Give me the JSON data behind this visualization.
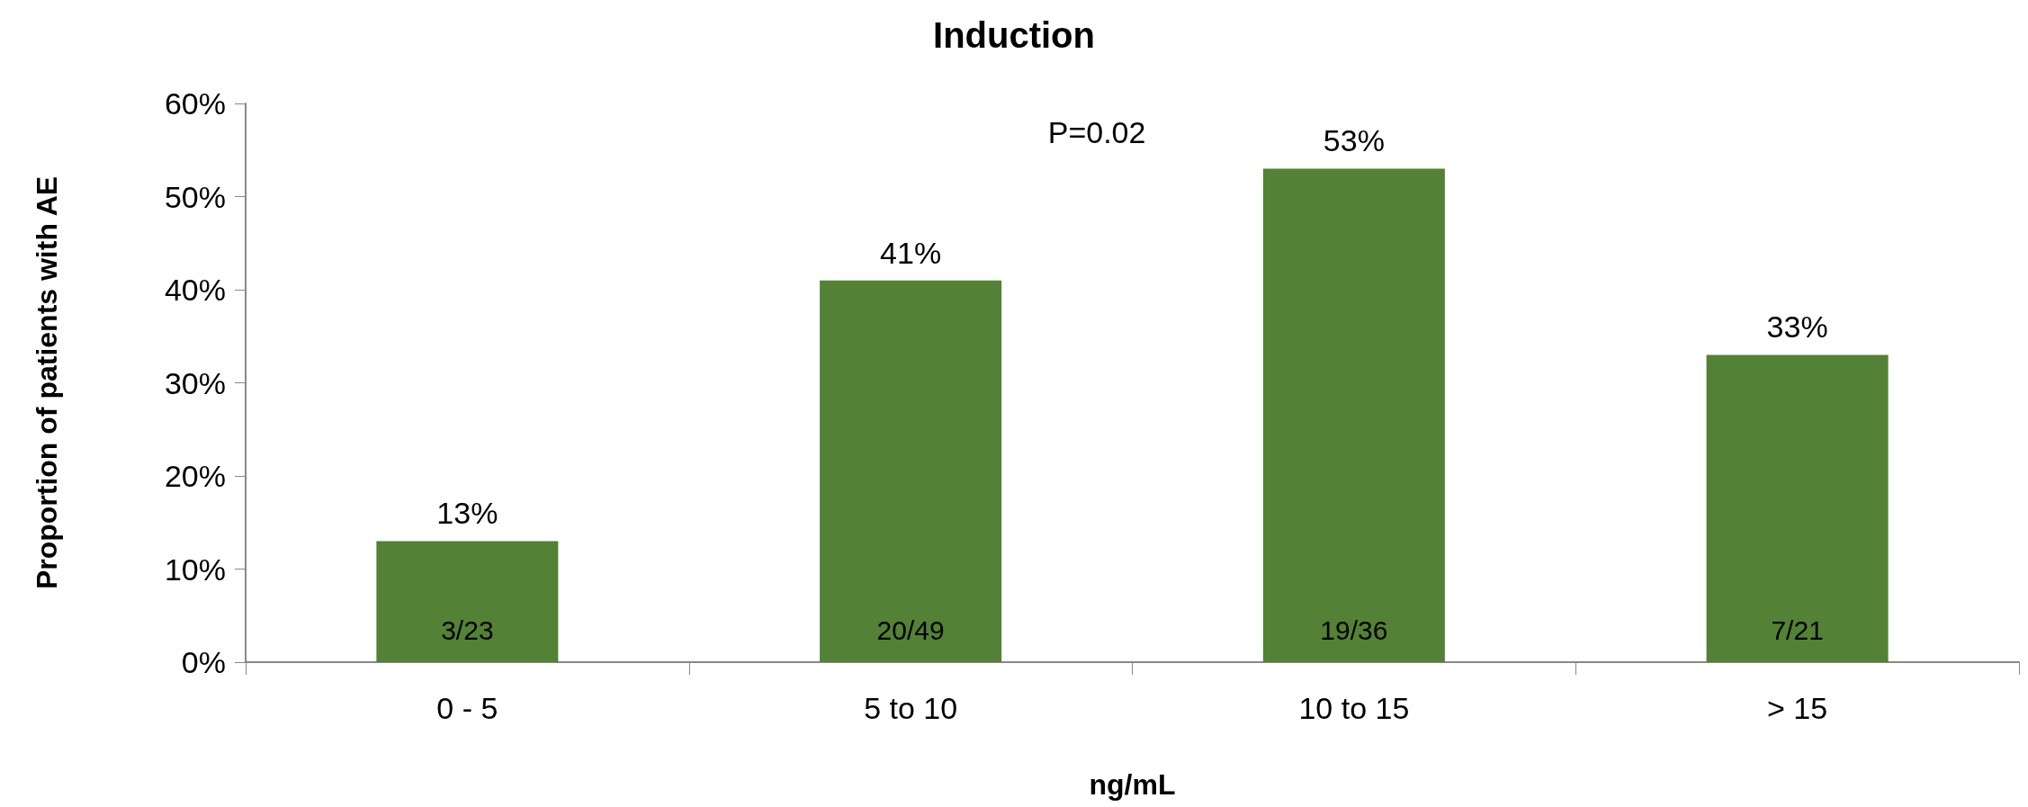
{
  "chart_data": {
    "type": "bar",
    "title": "Induction",
    "xlabel": "ng/mL",
    "ylabel": "Proportion of patients with AE",
    "categories": [
      "0 - 5",
      "5 to 10",
      "10 to 15",
      "> 15"
    ],
    "values": [
      13,
      41,
      53,
      33
    ],
    "color": "#538135",
    "value_labels": [
      "13%",
      "41%",
      "53%",
      "33%"
    ],
    "ylim": [
      0,
      60
    ],
    "yticks": [
      {
        "value": 0,
        "label": "0%"
      },
      {
        "value": 10,
        "label": "10%"
      },
      {
        "value": 20,
        "label": "20%"
      },
      {
        "value": 30,
        "label": "30%"
      },
      {
        "value": 40,
        "label": "40%"
      },
      {
        "value": 50,
        "label": "50%"
      },
      {
        "value": 60,
        "label": "60%"
      }
    ],
    "grid": false,
    "annotations": [
      "P=0.02",
      "3/23",
      "20/49",
      "19/36",
      "7/21"
    ]
  }
}
